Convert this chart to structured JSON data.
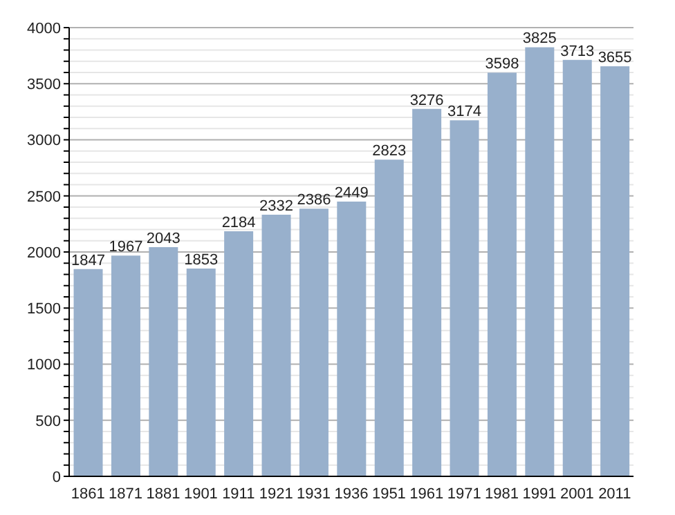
{
  "chart_data": {
    "type": "bar",
    "categories": [
      "1861",
      "1871",
      "1881",
      "1901",
      "1911",
      "1921",
      "1931",
      "1936",
      "1951",
      "1961",
      "1971",
      "1981",
      "1991",
      "2001",
      "2011"
    ],
    "values": [
      1847,
      1967,
      2043,
      1853,
      2184,
      2332,
      2386,
      2449,
      2823,
      3276,
      3174,
      3598,
      3825,
      3713,
      3655
    ],
    "color": "#98b0cc",
    "ylim": [
      0,
      4000
    ],
    "yticks": [
      0,
      {
        "value": 100,
        "label": null
      },
      {
        "value": 200,
        "label": null
      },
      {
        "value": 300,
        "label": null
      },
      {
        "value": 400,
        "label": null
      },
      500,
      {
        "value": 600,
        "label": null
      },
      {
        "value": 700,
        "label": null
      },
      {
        "value": 800,
        "label": null
      },
      {
        "value": 900,
        "label": null
      },
      1000,
      {
        "value": 1100,
        "label": null
      },
      {
        "value": 1200,
        "label": null
      },
      {
        "value": 1300,
        "label": null
      },
      {
        "value": 1400,
        "label": null
      },
      1500,
      {
        "value": 1600,
        "label": null
      },
      {
        "value": 1700,
        "label": null
      },
      {
        "value": 1800,
        "label": null
      },
      {
        "value": 1900,
        "label": null
      },
      2000,
      {
        "value": 2100,
        "label": null
      },
      {
        "value": 2200,
        "label": null
      },
      {
        "value": 2300,
        "label": null
      },
      {
        "value": 2400,
        "label": null
      },
      2500,
      {
        "value": 2600,
        "label": null
      },
      {
        "value": 2700,
        "label": null
      },
      {
        "value": 2800,
        "label": null
      },
      {
        "value": 2900,
        "label": null
      },
      3000,
      {
        "value": 3100,
        "label": null
      },
      {
        "value": 3200,
        "label": null
      },
      {
        "value": 3300,
        "label": null
      },
      {
        "value": 3400,
        "label": null
      },
      3500,
      {
        "value": 3600,
        "label": null
      },
      {
        "value": 3700,
        "label": null
      },
      {
        "value": 3800,
        "label": null
      },
      {
        "value": 3900,
        "label": null
      },
      4000
    ],
    "grid": "y",
    "data_labels": true
  }
}
